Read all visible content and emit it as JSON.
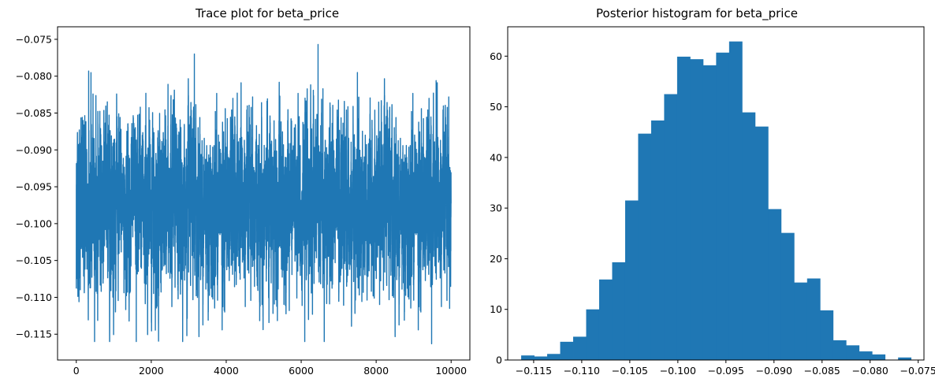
{
  "chart_data": [
    {
      "type": "line",
      "title": "Trace plot for beta_price",
      "xlabel": "",
      "ylabel": "",
      "xlim": [
        -500,
        10500
      ],
      "ylim": [
        -0.1185,
        -0.0733
      ],
      "xticks": [
        0,
        2000,
        4000,
        6000,
        8000,
        10000
      ],
      "xtick_labels": [
        "0",
        "2000",
        "4000",
        "6000",
        "8000",
        "10000"
      ],
      "yticks": [
        -0.115,
        -0.11,
        -0.105,
        -0.1,
        -0.095,
        -0.09,
        -0.085,
        -0.08,
        -0.075
      ],
      "ytick_labels": [
        "−0.115",
        "−0.110",
        "−0.105",
        "−0.100",
        "−0.095",
        "−0.090",
        "−0.085",
        "−0.080",
        "−0.075"
      ],
      "grid": false,
      "color": "#1f77b4",
      "series": [
        {
          "name": "",
          "n_draws": 10000,
          "approx_mean": -0.0975,
          "approx_sd": 0.0055,
          "observed_min": -0.1163,
          "observed_max": -0.0757,
          "notable_points": [
            [
              0,
              -0.1088
            ],
            [
              330,
              -0.0793
            ],
            [
              1600,
              -0.116
            ],
            [
              2950,
              -0.1152
            ],
            [
              3150,
              -0.077
            ],
            [
              6450,
              -0.0757
            ],
            [
              7500,
              -0.0795
            ],
            [
              9480,
              -0.1163
            ],
            [
              9600,
              -0.0806
            ],
            [
              9960,
              -0.1115
            ]
          ]
        }
      ]
    },
    {
      "type": "bar",
      "title": "Posterior histogram for beta_price",
      "xlabel": "",
      "ylabel": "",
      "xlim": [
        -0.1177,
        -0.0744
      ],
      "ylim": [
        0,
        65.8
      ],
      "xticks": [
        -0.115,
        -0.11,
        -0.105,
        -0.1,
        -0.095,
        -0.09,
        -0.085,
        -0.08,
        -0.075
      ],
      "xtick_labels": [
        "−0.115",
        "−0.110",
        "−0.105",
        "−0.100",
        "−0.095",
        "−0.090",
        "−0.085",
        "−0.080",
        "−0.075"
      ],
      "yticks": [
        0,
        10,
        20,
        30,
        40,
        50,
        60
      ],
      "ytick_labels": [
        "0",
        "10",
        "20",
        "30",
        "40",
        "50",
        "60"
      ],
      "grid": false,
      "color": "#1f77b4",
      "bin_start": -0.1163,
      "bin_width": 0.001352,
      "values": [
        0.9,
        0.7,
        1.2,
        3.6,
        4.6,
        10.0,
        15.9,
        19.3,
        31.5,
        44.7,
        47.3,
        52.5,
        59.9,
        59.4,
        58.2,
        60.7,
        62.9,
        48.9,
        46.1,
        29.8,
        25.1,
        15.3,
        16.1,
        9.8,
        3.9,
        2.9,
        1.7,
        1.1,
        0.0,
        0.5
      ]
    }
  ]
}
